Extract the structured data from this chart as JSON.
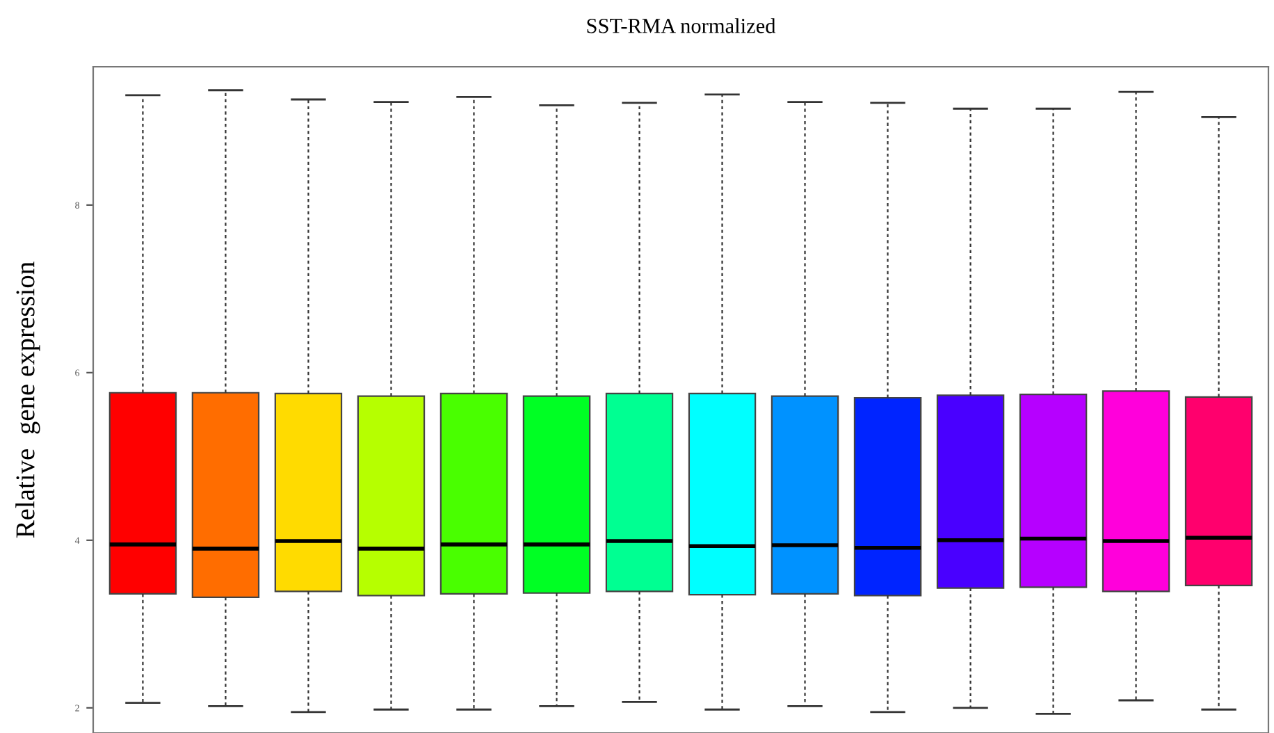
{
  "chart_data": {
    "type": "box",
    "title": "SST-RMA normalized",
    "ylabel": "Relative  gene expression",
    "categories": [
      null,
      null,
      null,
      null,
      null,
      null,
      null,
      null,
      null,
      null,
      null,
      null,
      null,
      null
    ],
    "colors": [
      "#ff0000",
      "#ff6d00",
      "#ffdb00",
      "#b6ff00",
      "#49ff00",
      "#00ff24",
      "#00ff92",
      "#00ffff",
      "#0092ff",
      "#0024ff",
      "#4900ff",
      "#b600ff",
      "#ff00db",
      "#ff006d"
    ],
    "boxes": [
      {
        "low": 2.06,
        "q1": 3.36,
        "median": 3.95,
        "q3": 5.76,
        "high": 9.31
      },
      {
        "low": 2.02,
        "q1": 3.32,
        "median": 3.9,
        "q3": 5.76,
        "high": 9.37
      },
      {
        "low": 1.95,
        "q1": 3.39,
        "median": 3.99,
        "q3": 5.75,
        "high": 9.26
      },
      {
        "low": 1.98,
        "q1": 3.34,
        "median": 3.9,
        "q3": 5.72,
        "high": 9.23
      },
      {
        "low": 1.98,
        "q1": 3.36,
        "median": 3.95,
        "q3": 5.75,
        "high": 9.29
      },
      {
        "low": 2.02,
        "q1": 3.37,
        "median": 3.95,
        "q3": 5.72,
        "high": 9.19
      },
      {
        "low": 2.07,
        "q1": 3.39,
        "median": 3.99,
        "q3": 5.75,
        "high": 9.22
      },
      {
        "low": 1.98,
        "q1": 3.35,
        "median": 3.93,
        "q3": 5.75,
        "high": 9.32
      },
      {
        "low": 2.02,
        "q1": 3.36,
        "median": 3.94,
        "q3": 5.72,
        "high": 9.23
      },
      {
        "low": 1.95,
        "q1": 3.34,
        "median": 3.91,
        "q3": 5.7,
        "high": 9.22
      },
      {
        "low": 2.0,
        "q1": 3.43,
        "median": 4.0,
        "q3": 5.73,
        "high": 9.15
      },
      {
        "low": 1.93,
        "q1": 3.44,
        "median": 4.02,
        "q3": 5.74,
        "high": 9.15
      },
      {
        "low": 2.09,
        "q1": 3.39,
        "median": 3.99,
        "q3": 5.78,
        "high": 9.35
      },
      {
        "low": 1.98,
        "q1": 3.46,
        "median": 4.03,
        "q3": 5.71,
        "high": 9.05
      }
    ],
    "ylim": [
      1.7,
      9.65
    ],
    "yticks": [
      2,
      4,
      6,
      8
    ],
    "tick_labels": "y",
    "grid": false,
    "line_style": "dashed"
  }
}
